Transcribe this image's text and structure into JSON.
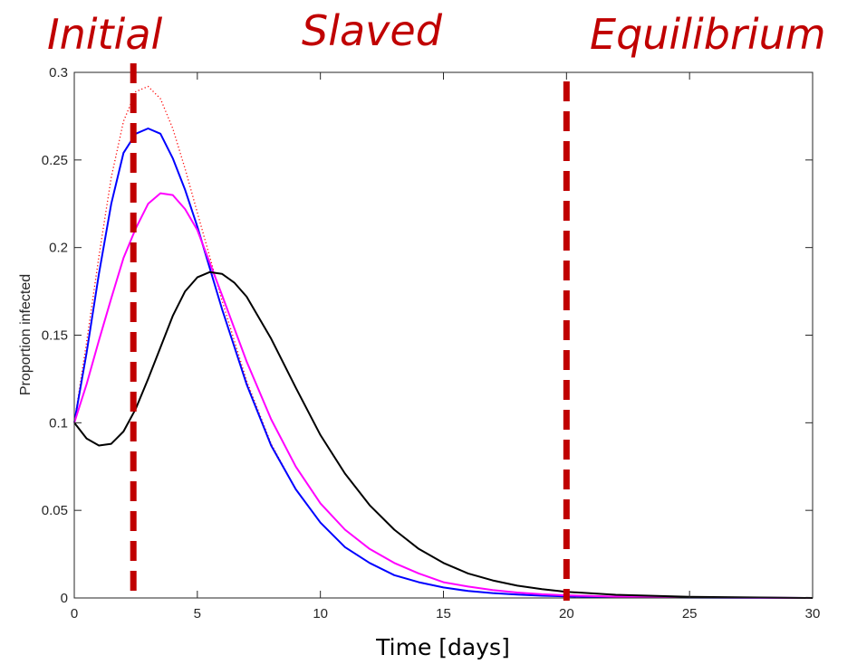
{
  "phase_labels": [
    "Initial",
    "Slaved",
    "Equilibrium"
  ],
  "colors": {
    "phase_label": "#c00000",
    "divider": "#c00000",
    "axes": "#262626"
  },
  "chart_data": {
    "type": "line",
    "title": "",
    "xlabel": "Time [days]",
    "ylabel": "Proportion infected",
    "xlim": [
      0,
      30
    ],
    "ylim": [
      0,
      0.3
    ],
    "xticks": [
      0,
      5,
      10,
      15,
      20,
      25,
      30
    ],
    "yticks": [
      0,
      0.05,
      0.1,
      0.15,
      0.2,
      0.25,
      0.3
    ],
    "xtick_labels": [
      "0",
      "5",
      "10",
      "15",
      "20",
      "25",
      "30"
    ],
    "ytick_labels": [
      "0",
      "0.05",
      "0.1",
      "0.15",
      "0.2",
      "0.25",
      "0.3"
    ],
    "grid": false,
    "legend": "none",
    "phase_dividers": [
      2.4,
      20
    ],
    "series": [
      {
        "color": "#ff0000",
        "style": "dotted",
        "x": [
          0,
          0.5,
          1,
          1.5,
          2,
          2.5,
          3,
          3.5,
          4,
          4.5,
          5,
          6,
          7,
          8,
          9,
          10,
          11,
          12,
          13,
          14,
          15,
          16,
          17,
          18,
          19,
          20,
          22,
          25,
          30
        ],
        "y": [
          0.1,
          0.146,
          0.195,
          0.24,
          0.272,
          0.289,
          0.292,
          0.285,
          0.268,
          0.245,
          0.22,
          0.17,
          0.124,
          0.088,
          0.062,
          0.043,
          0.029,
          0.02,
          0.013,
          0.009,
          0.006,
          0.004,
          0.0028,
          0.0019,
          0.0013,
          0.0009,
          0.0005,
          0.0002,
          0
        ]
      },
      {
        "color": "#0000ff",
        "style": "solid",
        "x": [
          0,
          0.5,
          1,
          1.5,
          2,
          2.5,
          3,
          3.5,
          4,
          4.5,
          5,
          6,
          7,
          8,
          9,
          10,
          11,
          12,
          13,
          14,
          15,
          16,
          17,
          18,
          19,
          20,
          22,
          25,
          30
        ],
        "y": [
          0.1,
          0.14,
          0.185,
          0.225,
          0.254,
          0.265,
          0.268,
          0.265,
          0.251,
          0.233,
          0.212,
          0.165,
          0.122,
          0.087,
          0.062,
          0.043,
          0.029,
          0.02,
          0.013,
          0.009,
          0.006,
          0.004,
          0.0028,
          0.0019,
          0.0013,
          0.0009,
          0.0005,
          0.0002,
          0
        ]
      },
      {
        "color": "#ff00ff",
        "style": "solid",
        "x": [
          0,
          0.5,
          1,
          1.5,
          2,
          2.5,
          3,
          3.5,
          4,
          4.5,
          5,
          6,
          7,
          8,
          9,
          10,
          11,
          12,
          13,
          14,
          15,
          16,
          17,
          18,
          19,
          20,
          22,
          25,
          30
        ],
        "y": [
          0.1,
          0.122,
          0.147,
          0.171,
          0.194,
          0.211,
          0.225,
          0.231,
          0.23,
          0.222,
          0.21,
          0.173,
          0.135,
          0.102,
          0.075,
          0.054,
          0.039,
          0.028,
          0.02,
          0.014,
          0.009,
          0.0065,
          0.0045,
          0.0031,
          0.0021,
          0.0015,
          0.0008,
          0.0003,
          0
        ]
      },
      {
        "color": "#000000",
        "style": "solid",
        "x": [
          0,
          0.5,
          1,
          1.5,
          2,
          2.5,
          3,
          3.5,
          4,
          4.5,
          5,
          5.5,
          6,
          6.5,
          7,
          8,
          9,
          10,
          11,
          12,
          13,
          14,
          15,
          16,
          17,
          18,
          19,
          20,
          22,
          25,
          30
        ],
        "y": [
          0.1,
          0.091,
          0.087,
          0.088,
          0.095,
          0.108,
          0.125,
          0.143,
          0.161,
          0.175,
          0.183,
          0.186,
          0.185,
          0.18,
          0.172,
          0.148,
          0.12,
          0.093,
          0.071,
          0.053,
          0.039,
          0.028,
          0.02,
          0.014,
          0.01,
          0.007,
          0.005,
          0.0035,
          0.0018,
          0.0006,
          0
        ]
      }
    ]
  }
}
